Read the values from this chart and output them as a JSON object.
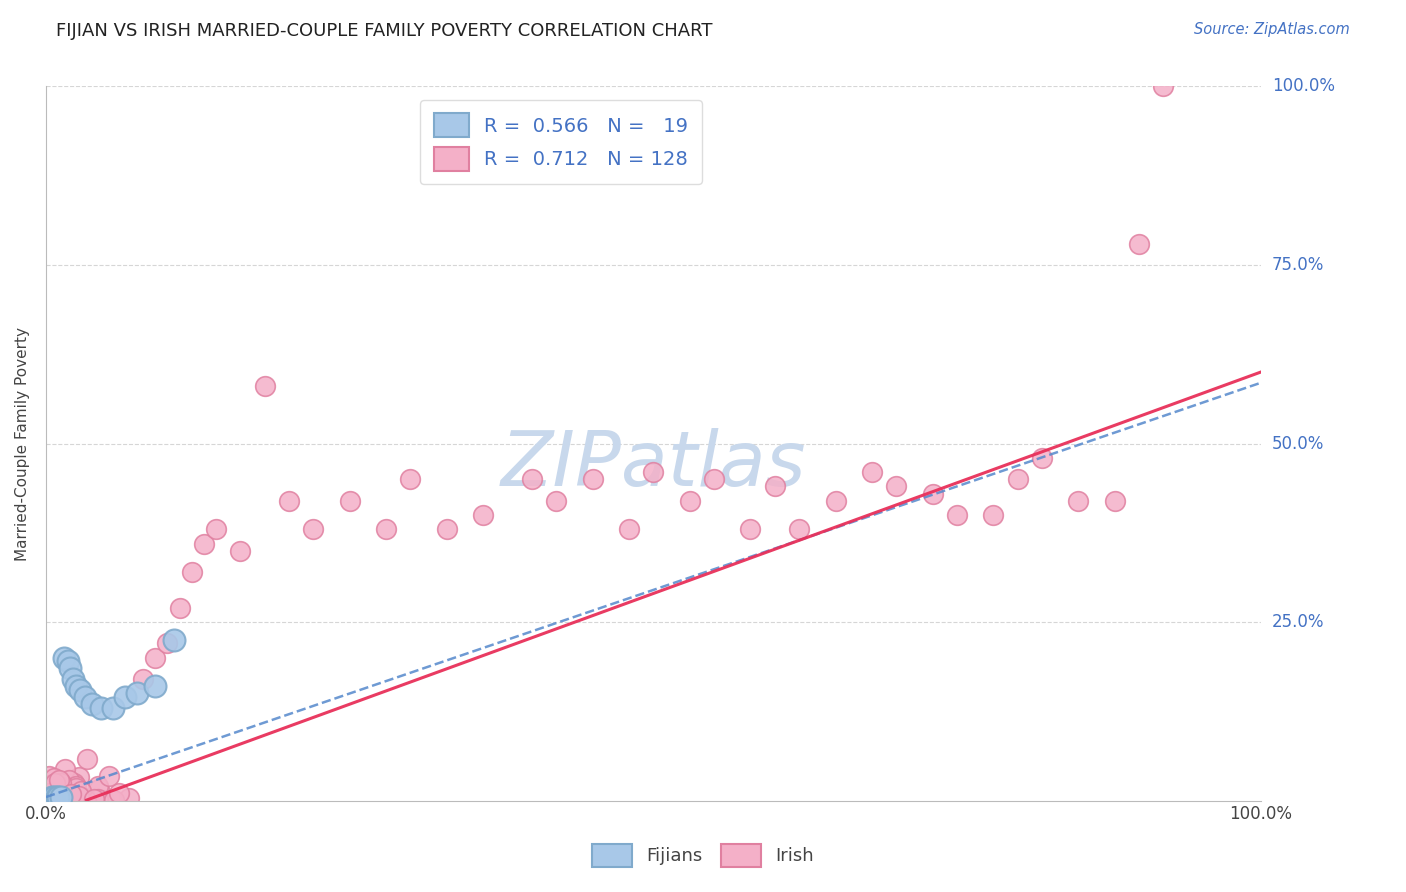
{
  "title": "FIJIAN VS IRISH MARRIED-COUPLE FAMILY POVERTY CORRELATION CHART",
  "source": "Source: ZipAtlas.com",
  "ylabel": "Married-Couple Family Poverty",
  "fijian_color": "#a8c8e8",
  "fijian_edge_color": "#80aacc",
  "fijian_line_color": "#5588cc",
  "irish_color": "#f4b0c8",
  "irish_edge_color": "#e080a0",
  "irish_line_color": "#e8305a",
  "grid_color": "#cccccc",
  "watermark_color": "#c8d8ec",
  "legend_fijian_R": "0.566",
  "legend_fijian_N": "19",
  "legend_irish_R": "0.712",
  "legend_irish_N": "128",
  "title_color": "#222222",
  "source_color": "#4472c4",
  "stat_color": "#4472c4",
  "yticklabel_color": "#4472c4",
  "background_color": "#ffffff"
}
